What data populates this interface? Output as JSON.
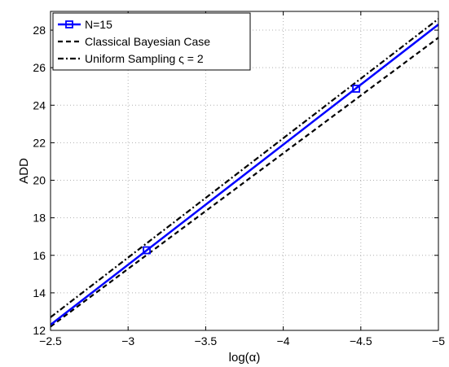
{
  "chart_data": {
    "type": "line",
    "xlabel": "log(α)",
    "ylabel": "ADD",
    "xlim": [
      -2.5,
      -5
    ],
    "ylim": [
      12,
      29
    ],
    "x_ticks": [
      -2.5,
      -3,
      -3.5,
      -4,
      -4.5,
      -5
    ],
    "x_tick_labels": [
      "−2.5",
      "−3",
      "−3.5",
      "−4",
      "−4.5",
      "−5"
    ],
    "y_ticks": [
      12,
      14,
      16,
      18,
      20,
      22,
      24,
      26,
      28
    ],
    "y_tick_labels": [
      "12",
      "14",
      "16",
      "18",
      "20",
      "22",
      "24",
      "26",
      "28"
    ],
    "grid": true,
    "legend_position": "top-left",
    "series": [
      {
        "name": "N=15",
        "color": "#0000ff",
        "style": "solid",
        "marker": "square",
        "points": [
          [
            -2.5,
            12.3
          ],
          [
            -5.0,
            28.3
          ]
        ],
        "marker_points": [
          [
            -3.12,
            16.27
          ],
          [
            -4.47,
            24.88
          ]
        ]
      },
      {
        "name": "Classical Bayesian Case",
        "color": "#000000",
        "style": "dashed",
        "points": [
          [
            -2.5,
            12.2
          ],
          [
            -5.0,
            27.6
          ]
        ]
      },
      {
        "name": "Uniform Sampling ς = 2",
        "color": "#000000",
        "style": "dashdot",
        "points": [
          [
            -2.5,
            12.7
          ],
          [
            -5.0,
            28.6
          ]
        ]
      }
    ]
  }
}
